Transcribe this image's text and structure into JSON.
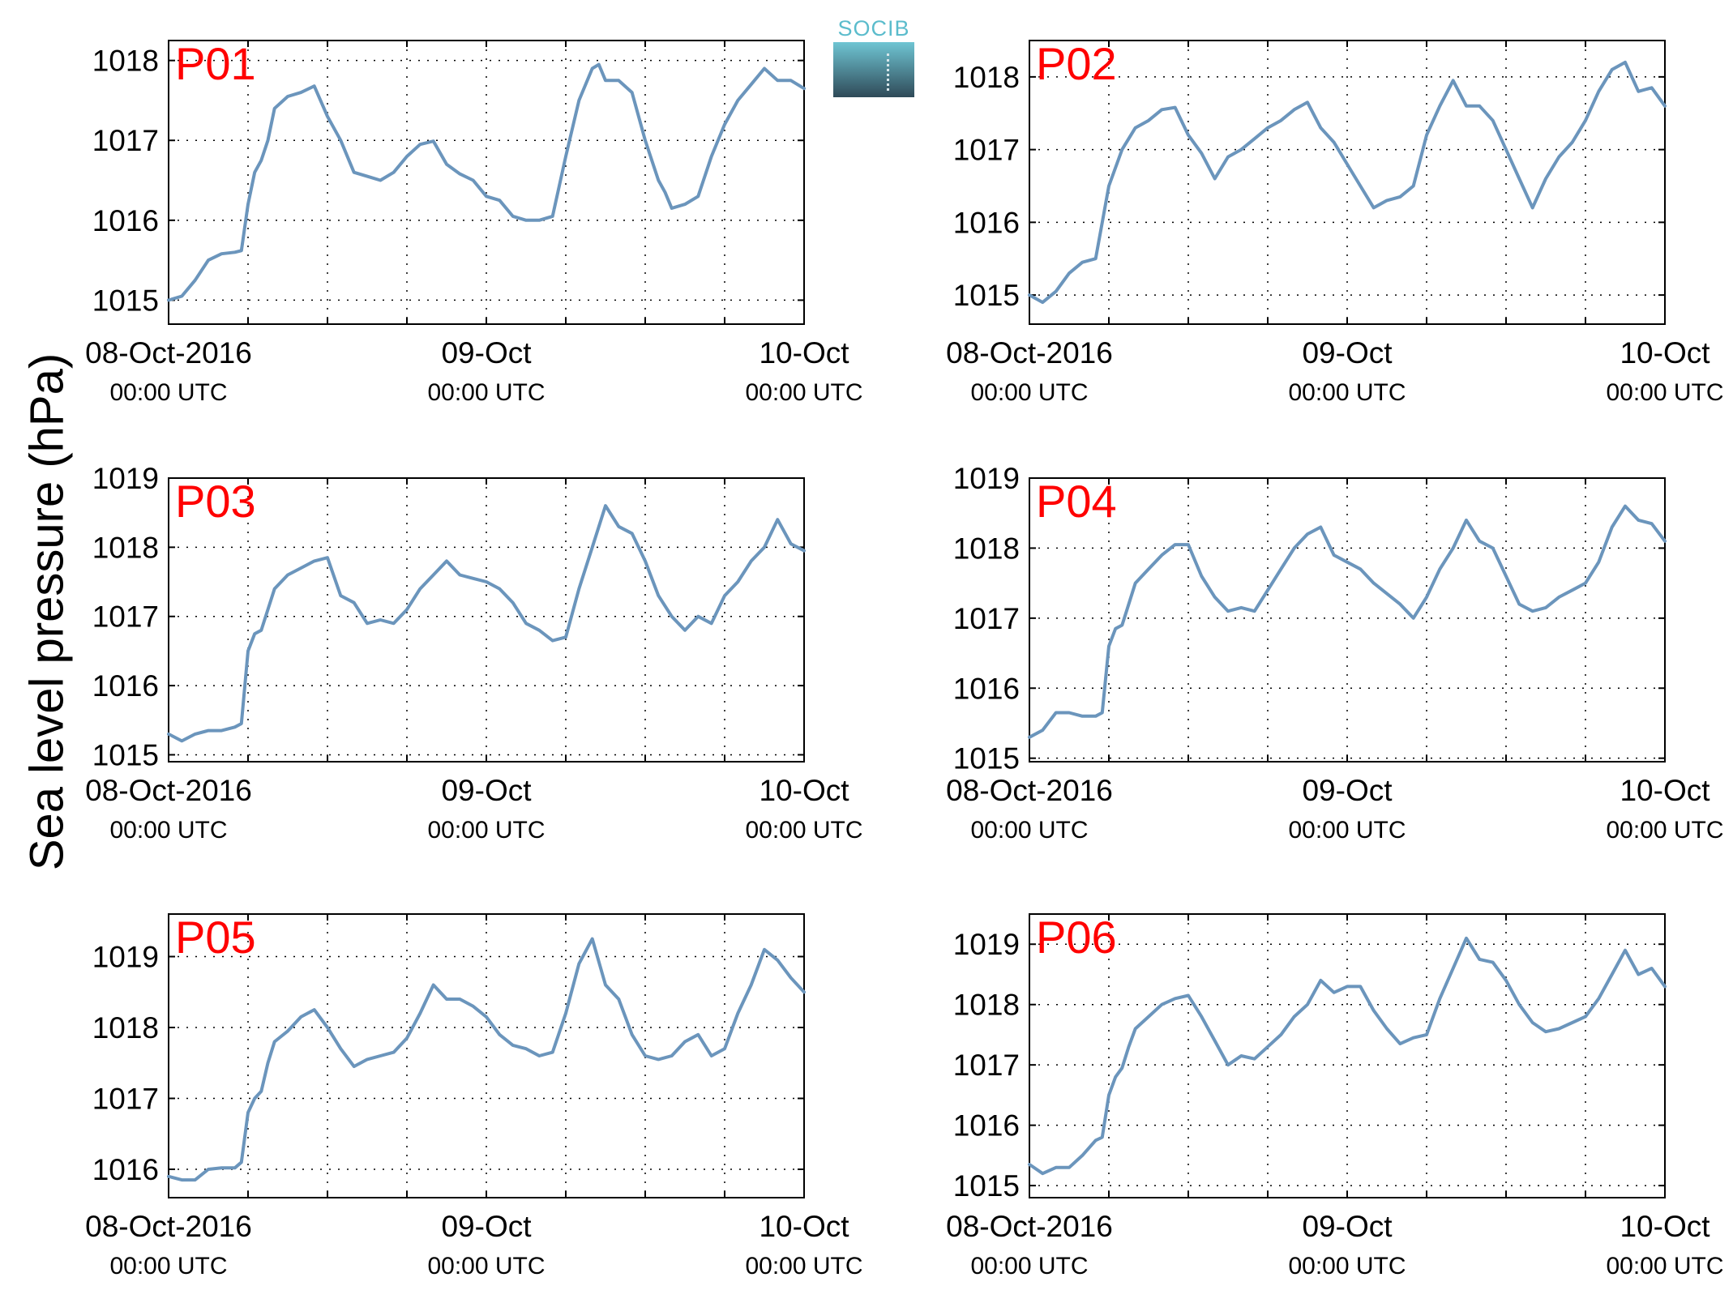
{
  "figure": {
    "ylabel": "Sea level pressure (hPa)",
    "logo_text": "SOCIB",
    "line_color": "#6b95bc",
    "label_color": "#ff0000"
  },
  "chart_data": [
    {
      "type": "line",
      "title": "P01",
      "ylim": [
        1014.7,
        1018.25
      ],
      "yticks": [
        1015,
        1016,
        1017,
        1018
      ],
      "xlim": [
        0,
        48
      ],
      "grid": true,
      "xticks": [
        {
          "x": 0,
          "label": "08-Oct-2016",
          "sub": "00:00 UTC"
        },
        {
          "x": 24,
          "label": "09-Oct",
          "sub": "00:00 UTC"
        },
        {
          "x": 48,
          "label": "10-Oct",
          "sub": "00:00 UTC"
        }
      ],
      "x": [
        0,
        1,
        2,
        3,
        4,
        5,
        5.5,
        6,
        6.5,
        7,
        7.5,
        8,
        9,
        10,
        11,
        12,
        13,
        14,
        15,
        16,
        17,
        18,
        19,
        20,
        21,
        22,
        23,
        24,
        25,
        26,
        27,
        28,
        29,
        30,
        31,
        32,
        32.5,
        33,
        34,
        35,
        36,
        37,
        37.5,
        38,
        39,
        40,
        41,
        42,
        43,
        44,
        45,
        46,
        47,
        48
      ],
      "y": [
        1015.0,
        1015.05,
        1015.25,
        1015.5,
        1015.58,
        1015.6,
        1015.62,
        1016.2,
        1016.6,
        1016.75,
        1017.0,
        1017.4,
        1017.55,
        1017.6,
        1017.68,
        1017.3,
        1017.0,
        1016.6,
        1016.55,
        1016.5,
        1016.6,
        1016.8,
        1016.95,
        1016.99,
        1016.7,
        1016.58,
        1016.5,
        1016.3,
        1016.25,
        1016.05,
        1016.0,
        1016.0,
        1016.05,
        1016.8,
        1017.5,
        1017.9,
        1017.95,
        1017.75,
        1017.75,
        1017.6,
        1017.0,
        1016.5,
        1016.35,
        1016.15,
        1016.2,
        1016.3,
        1016.8,
        1017.2,
        1017.5,
        1017.7,
        1017.9,
        1017.75,
        1017.75,
        1017.65
      ]
    },
    {
      "type": "line",
      "title": "P02",
      "ylim": [
        1014.6,
        1018.5
      ],
      "yticks": [
        1015,
        1016,
        1017,
        1018
      ],
      "xlim": [
        0,
        48
      ],
      "grid": true,
      "xticks": [
        {
          "x": 0,
          "label": "08-Oct-2016",
          "sub": "00:00 UTC"
        },
        {
          "x": 24,
          "label": "09-Oct",
          "sub": "00:00 UTC"
        },
        {
          "x": 48,
          "label": "10-Oct",
          "sub": "00:00 UTC"
        }
      ],
      "x": [
        0,
        1,
        2,
        3,
        4,
        5,
        6,
        7,
        8,
        9,
        10,
        11,
        12,
        13,
        14,
        15,
        16,
        17,
        18,
        19,
        20,
        21,
        22,
        23,
        24,
        25,
        26,
        27,
        28,
        29,
        30,
        31,
        32,
        33,
        34,
        35,
        36,
        37,
        38,
        39,
        40,
        41,
        42,
        43,
        44,
        45,
        46,
        47,
        48
      ],
      "y": [
        1015.0,
        1014.9,
        1015.05,
        1015.3,
        1015.45,
        1015.5,
        1016.5,
        1017.0,
        1017.3,
        1017.4,
        1017.55,
        1017.58,
        1017.2,
        1016.95,
        1016.6,
        1016.9,
        1017.0,
        1017.15,
        1017.3,
        1017.4,
        1017.55,
        1017.65,
        1017.3,
        1017.1,
        1016.8,
        1016.5,
        1016.2,
        1016.3,
        1016.35,
        1016.5,
        1017.2,
        1017.6,
        1017.95,
        1017.6,
        1017.6,
        1017.4,
        1017.0,
        1016.6,
        1016.2,
        1016.6,
        1016.9,
        1017.1,
        1017.4,
        1017.8,
        1018.1,
        1018.2,
        1017.8,
        1017.85,
        1017.6
      ]
    },
    {
      "type": "line",
      "title": "P03",
      "ylim": [
        1014.9,
        1019.0
      ],
      "yticks": [
        1015,
        1016,
        1017,
        1018,
        1019
      ],
      "xlim": [
        0,
        48
      ],
      "grid": true,
      "xticks": [
        {
          "x": 0,
          "label": "08-Oct-2016",
          "sub": "00:00 UTC"
        },
        {
          "x": 24,
          "label": "09-Oct",
          "sub": "00:00 UTC"
        },
        {
          "x": 48,
          "label": "10-Oct",
          "sub": "00:00 UTC"
        }
      ],
      "x": [
        0,
        1,
        2,
        3,
        4,
        5,
        5.5,
        6,
        6.5,
        7,
        7.5,
        8,
        9,
        10,
        11,
        12,
        13,
        14,
        15,
        16,
        17,
        18,
        19,
        20,
        21,
        22,
        23,
        24,
        25,
        26,
        27,
        28,
        29,
        30,
        31,
        32,
        33,
        34,
        35,
        36,
        37,
        38,
        39,
        40,
        41,
        42,
        43,
        44,
        45,
        46,
        47,
        48
      ],
      "y": [
        1015.3,
        1015.2,
        1015.3,
        1015.35,
        1015.35,
        1015.4,
        1015.45,
        1016.5,
        1016.75,
        1016.8,
        1017.1,
        1017.4,
        1017.6,
        1017.7,
        1017.8,
        1017.85,
        1017.3,
        1017.2,
        1016.9,
        1016.95,
        1016.9,
        1017.1,
        1017.4,
        1017.6,
        1017.8,
        1017.6,
        1017.55,
        1017.5,
        1017.4,
        1017.2,
        1016.9,
        1016.8,
        1016.65,
        1016.7,
        1017.4,
        1018.0,
        1018.6,
        1018.3,
        1018.2,
        1017.8,
        1017.3,
        1017.0,
        1016.8,
        1017.0,
        1016.9,
        1017.3,
        1017.5,
        1017.8,
        1018.0,
        1018.4,
        1018.05,
        1017.95
      ]
    },
    {
      "type": "line",
      "title": "P04",
      "ylim": [
        1014.95,
        1019.0
      ],
      "yticks": [
        1015,
        1016,
        1017,
        1018,
        1019
      ],
      "xlim": [
        0,
        48
      ],
      "grid": true,
      "xticks": [
        {
          "x": 0,
          "label": "08-Oct-2016",
          "sub": "00:00 UTC"
        },
        {
          "x": 24,
          "label": "09-Oct",
          "sub": "00:00 UTC"
        },
        {
          "x": 48,
          "label": "10-Oct",
          "sub": "00:00 UTC"
        }
      ],
      "x": [
        0,
        1,
        2,
        3,
        4,
        5,
        5.5,
        6,
        6.5,
        7,
        7.5,
        8,
        9,
        10,
        11,
        12,
        13,
        14,
        15,
        16,
        17,
        18,
        19,
        20,
        21,
        22,
        23,
        24,
        25,
        26,
        27,
        28,
        29,
        30,
        31,
        32,
        33,
        34,
        35,
        36,
        37,
        38,
        39,
        40,
        41,
        42,
        43,
        44,
        45,
        46,
        47,
        48
      ],
      "y": [
        1015.3,
        1015.4,
        1015.65,
        1015.65,
        1015.6,
        1015.6,
        1015.65,
        1016.6,
        1016.85,
        1016.9,
        1017.2,
        1017.5,
        1017.7,
        1017.9,
        1018.05,
        1018.05,
        1017.6,
        1017.3,
        1017.1,
        1017.15,
        1017.1,
        1017.4,
        1017.7,
        1018.0,
        1018.2,
        1018.3,
        1017.9,
        1017.8,
        1017.7,
        1017.5,
        1017.35,
        1017.2,
        1017.0,
        1017.3,
        1017.7,
        1018.0,
        1018.4,
        1018.1,
        1018.0,
        1017.6,
        1017.2,
        1017.1,
        1017.15,
        1017.3,
        1017.4,
        1017.5,
        1017.8,
        1018.3,
        1018.6,
        1018.4,
        1018.35,
        1018.1
      ]
    },
    {
      "type": "line",
      "title": "P05",
      "ylim": [
        1015.6,
        1019.6
      ],
      "yticks": [
        1016,
        1017,
        1018,
        1019
      ],
      "xlim": [
        0,
        48
      ],
      "grid": true,
      "xticks": [
        {
          "x": 0,
          "label": "08-Oct-2016",
          "sub": "00:00 UTC"
        },
        {
          "x": 24,
          "label": "09-Oct",
          "sub": "00:00 UTC"
        },
        {
          "x": 48,
          "label": "10-Oct",
          "sub": "00:00 UTC"
        }
      ],
      "x": [
        0,
        1,
        2,
        3,
        4,
        5,
        5.5,
        6,
        6.5,
        7,
        7.5,
        8,
        9,
        10,
        11,
        12,
        13,
        14,
        15,
        16,
        17,
        18,
        19,
        20,
        21,
        22,
        23,
        24,
        25,
        26,
        27,
        28,
        29,
        30,
        31,
        32,
        33,
        34,
        35,
        36,
        37,
        38,
        39,
        40,
        41,
        42,
        43,
        44,
        45,
        46,
        47,
        48
      ],
      "y": [
        1015.9,
        1015.85,
        1015.85,
        1016.0,
        1016.02,
        1016.02,
        1016.1,
        1016.8,
        1017.0,
        1017.1,
        1017.5,
        1017.8,
        1017.95,
        1018.15,
        1018.25,
        1018.0,
        1017.7,
        1017.45,
        1017.55,
        1017.6,
        1017.65,
        1017.85,
        1018.2,
        1018.6,
        1018.4,
        1018.4,
        1018.3,
        1018.15,
        1017.9,
        1017.75,
        1017.7,
        1017.6,
        1017.65,
        1018.2,
        1018.9,
        1019.25,
        1018.6,
        1018.4,
        1017.9,
        1017.6,
        1017.55,
        1017.6,
        1017.8,
        1017.9,
        1017.6,
        1017.7,
        1018.2,
        1018.6,
        1019.1,
        1018.95,
        1018.7,
        1018.5
      ]
    },
    {
      "type": "line",
      "title": "P06",
      "ylim": [
        1014.8,
        1019.5
      ],
      "yticks": [
        1015,
        1016,
        1017,
        1018,
        1019
      ],
      "xlim": [
        0,
        48
      ],
      "grid": true,
      "xticks": [
        {
          "x": 0,
          "label": "08-Oct-2016",
          "sub": "00:00 UTC"
        },
        {
          "x": 24,
          "label": "09-Oct",
          "sub": "00:00 UTC"
        },
        {
          "x": 48,
          "label": "10-Oct",
          "sub": "00:00 UTC"
        }
      ],
      "x": [
        0,
        1,
        2,
        3,
        4,
        5,
        5.5,
        6,
        6.5,
        7,
        7.5,
        8,
        9,
        10,
        11,
        12,
        13,
        14,
        15,
        16,
        17,
        18,
        19,
        20,
        21,
        22,
        23,
        24,
        25,
        26,
        27,
        28,
        29,
        30,
        31,
        32,
        33,
        34,
        35,
        36,
        37,
        38,
        39,
        40,
        41,
        42,
        43,
        44,
        45,
        46,
        47,
        48
      ],
      "y": [
        1015.35,
        1015.2,
        1015.3,
        1015.3,
        1015.5,
        1015.75,
        1015.8,
        1016.5,
        1016.8,
        1016.95,
        1017.3,
        1017.6,
        1017.8,
        1018.0,
        1018.1,
        1018.15,
        1017.8,
        1017.4,
        1017.0,
        1017.15,
        1017.1,
        1017.3,
        1017.5,
        1017.8,
        1018.0,
        1018.4,
        1018.2,
        1018.3,
        1018.3,
        1017.9,
        1017.6,
        1017.35,
        1017.45,
        1017.5,
        1018.1,
        1018.6,
        1019.1,
        1018.75,
        1018.7,
        1018.4,
        1018.0,
        1017.7,
        1017.55,
        1017.6,
        1017.7,
        1017.8,
        1018.1,
        1018.5,
        1018.9,
        1018.5,
        1018.6,
        1018.3
      ]
    }
  ]
}
